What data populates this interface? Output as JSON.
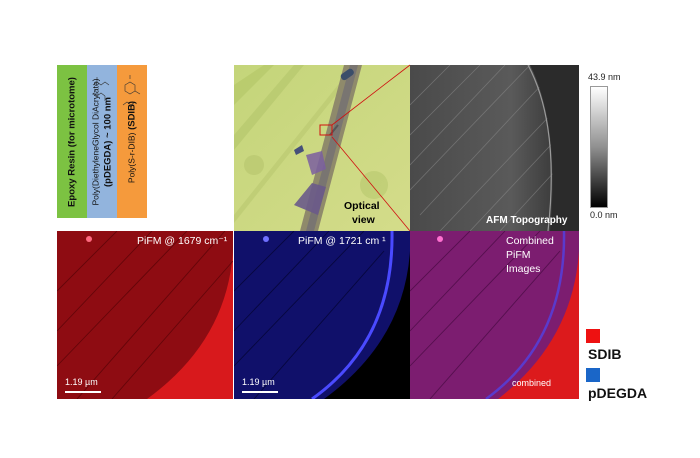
{
  "strips": [
    {
      "bold": "Epoxy Resin",
      "normal": " (for microtome)",
      "color": "#7cc242"
    },
    {
      "normal": "Poly(DiethyleneGlycol DiAcrylate)",
      "bold": "(pDEGDA) ~ 100 nm",
      "color": "#92b4dd"
    },
    {
      "normal": "Poly(S-r-DIB)",
      "bold": " (SDIB)",
      "color": "#f59a3c"
    }
  ],
  "panels": {
    "optical_label_line1": "Optical",
    "optical_label_line2": "view",
    "afm_label": "AFM Topography",
    "pifm1_label": "PiFM @ 1679 cm⁻¹",
    "pifm2_label": "PiFM @ 1721 cm ¹",
    "combined_line1": "Combined",
    "combined_line2": "PiFM",
    "combined_line3": "Images",
    "combined_bottom": "combined",
    "scale1": "1.19 µm",
    "scale2": "1.19 µm"
  },
  "colorbar": {
    "max": "43.9 nm",
    "min": "0.0 nm"
  },
  "legend": [
    {
      "label": "SDIB",
      "color": "#ee1111"
    },
    {
      "label": "pDEGDA",
      "color": "#1a66c8"
    }
  ]
}
